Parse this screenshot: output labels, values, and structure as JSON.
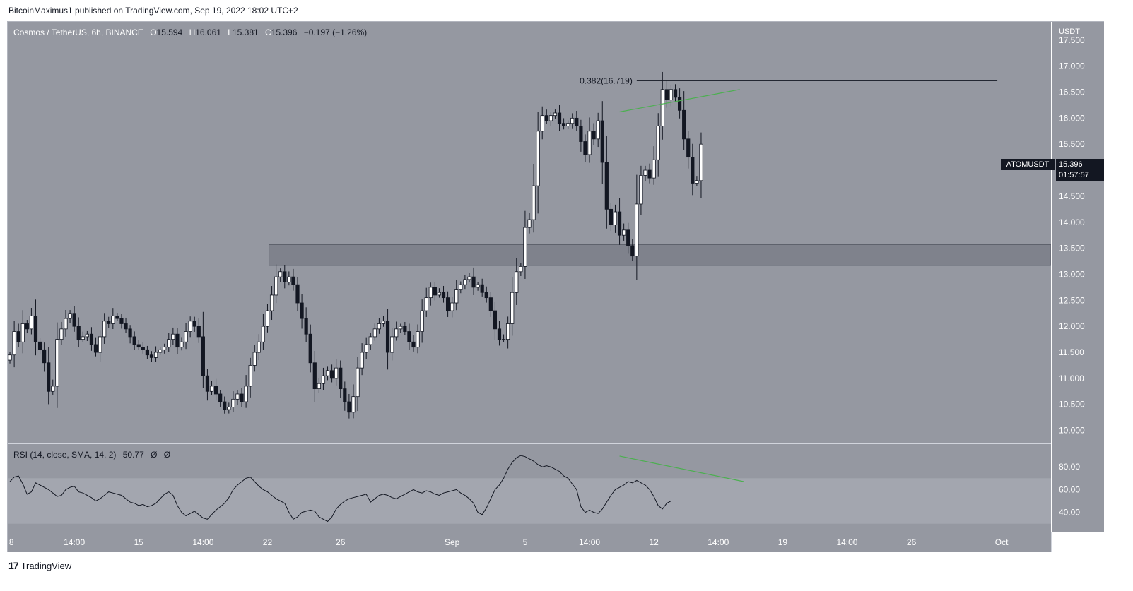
{
  "header": {
    "published": "BitcoinMaximus1 published on TradingView.com, Sep 19, 2022 18:02 UTC+2"
  },
  "legend": {
    "symbol": "Cosmos / TetherUS, 6h, BINANCE",
    "o_label": "O",
    "o": "15.594",
    "h_label": "H",
    "h": "16.061",
    "l_label": "L",
    "l": "15.381",
    "c_label": "C",
    "c": "15.396",
    "change": "−0.197 (−1.26%)"
  },
  "price_axis": {
    "unit": "USDT"
  },
  "badge": {
    "symbol": "ATOMUSDT",
    "price": "15.396",
    "countdown": "01:57:57"
  },
  "fib_label": "0.382(16.719)",
  "rsi": {
    "legend_name": "RSI (14, close, SMA, 14, 2)",
    "value": "50.77",
    "ph1": "Ø",
    "ph2": "Ø"
  },
  "footer": {
    "logo": "17",
    "brand": "TradingView"
  },
  "colors": {
    "background": "#9598a1",
    "candle_up": "#ffffff",
    "candle_down": "#131722",
    "divergence": "#4caf50",
    "zone": "#787b86"
  },
  "chart_data": [
    {
      "type": "candlestick",
      "title": "Cosmos / TetherUS, 6h, BINANCE",
      "ylabel": "USDT",
      "ylim": [
        9.75,
        17.85
      ],
      "yticks": [
        "17.500",
        "17.000",
        "16.500",
        "16.000",
        "15.500",
        "15.000",
        "14.500",
        "14.000",
        "13.500",
        "13.000",
        "12.500",
        "12.000",
        "11.500",
        "11.000",
        "10.500",
        "10.000"
      ],
      "ytick_values": [
        17.5,
        17.0,
        16.5,
        16.0,
        15.5,
        15.0,
        14.5,
        14.0,
        13.5,
        13.0,
        12.5,
        12.0,
        11.5,
        11.0,
        10.5,
        10.0
      ],
      "xticks": [
        {
          "label": "8",
          "index": -0.2
        },
        {
          "label": "14:00",
          "index": 15
        },
        {
          "label": "15",
          "index": 30
        },
        {
          "label": "14:00",
          "index": 45
        },
        {
          "label": "22",
          "index": 60
        },
        {
          "label": "26",
          "index": 77
        },
        {
          "label": "Sep",
          "index": 103
        },
        {
          "label": "5",
          "index": 120
        },
        {
          "label": "14:00",
          "index": 135
        },
        {
          "label": "12",
          "index": 150
        },
        {
          "label": "14:00",
          "index": 165
        },
        {
          "label": "19",
          "index": 180
        },
        {
          "label": "14:00",
          "index": 195
        },
        {
          "label": "26",
          "index": 210
        },
        {
          "label": "Oct",
          "index": 231
        }
      ],
      "visible_slots": 243,
      "support_zone": [
        13.17,
        13.57
      ],
      "fib_level": 16.719,
      "price_divergence": [
        [
          142,
          16.12
        ],
        [
          170,
          16.55
        ]
      ],
      "ohlc_closes": [
        11.45,
        11.9,
        11.7,
        12.05,
        11.95,
        12.2,
        11.7,
        11.55,
        11.3,
        10.75,
        10.85,
        11.75,
        11.95,
        12.15,
        12.25,
        12.0,
        11.75,
        11.8,
        11.85,
        11.65,
        11.5,
        11.8,
        12.1,
        12.05,
        12.2,
        12.15,
        12.05,
        11.95,
        11.8,
        11.65,
        11.6,
        11.55,
        11.45,
        11.4,
        11.5,
        11.55,
        11.6,
        11.75,
        11.85,
        11.6,
        11.7,
        11.9,
        12.1,
        12.0,
        11.8,
        11.05,
        10.75,
        10.85,
        10.7,
        10.55,
        10.4,
        10.45,
        10.6,
        10.7,
        10.55,
        10.85,
        11.25,
        11.5,
        11.7,
        12.0,
        12.3,
        12.6,
        12.95,
        13.05,
        12.85,
        12.95,
        12.8,
        12.45,
        12.15,
        11.85,
        11.3,
        10.8,
        10.9,
        11.05,
        11.15,
        11.0,
        11.2,
        10.8,
        10.55,
        10.35,
        10.65,
        11.2,
        11.5,
        11.65,
        11.8,
        11.95,
        12.05,
        12.1,
        11.5,
        11.8,
        11.95,
        12.0,
        11.9,
        11.7,
        11.6,
        11.9,
        12.3,
        12.55,
        12.75,
        12.6,
        12.65,
        12.55,
        12.3,
        12.45,
        12.7,
        12.8,
        12.9,
        12.95,
        12.75,
        12.8,
        12.65,
        12.55,
        12.3,
        11.95,
        11.75,
        11.75,
        12.05,
        12.65,
        13.05,
        13.15,
        13.9,
        14.05,
        14.7,
        15.75,
        16.05,
        15.95,
        16.05,
        16.1,
        15.9,
        15.85,
        15.9,
        16.0,
        15.85,
        15.55,
        15.3,
        15.75,
        15.6,
        15.95,
        15.15,
        14.25,
        13.95,
        14.2,
        13.75,
        13.85,
        13.55,
        13.35,
        14.35,
        14.9,
        15.0,
        14.85,
        15.2,
        15.85,
        16.55,
        16.35,
        16.55,
        16.4,
        16.15,
        15.6,
        15.25,
        14.75,
        14.8,
        15.5
      ]
    },
    {
      "type": "line",
      "title": "RSI (14, close, SMA, 14, 2)",
      "ylim": [
        23,
        100
      ],
      "yticks": [
        "80.00",
        "60.00",
        "40.00"
      ],
      "ytick_values": [
        80,
        60,
        40
      ],
      "band": [
        30,
        70
      ],
      "midline": 50,
      "rsi_divergence": [
        [
          142,
          89.5
        ],
        [
          171,
          67
        ]
      ],
      "values": [
        67,
        71,
        72,
        65,
        56,
        58,
        66,
        64,
        62,
        60,
        57,
        54,
        55,
        60,
        62,
        63,
        58,
        57,
        55,
        53,
        50,
        52,
        55,
        58,
        57,
        56,
        55,
        52,
        49,
        48,
        46,
        47,
        45,
        46,
        48,
        52,
        56,
        58,
        55,
        46,
        40,
        37,
        39,
        41,
        38,
        35,
        34,
        38,
        42,
        45,
        48,
        53,
        60,
        64,
        67,
        70,
        71,
        67,
        63,
        60,
        58,
        55,
        52,
        50,
        48,
        40,
        34,
        36,
        40,
        41,
        42,
        41,
        36,
        34,
        32,
        36,
        43,
        47,
        50,
        52,
        53,
        54,
        55,
        56,
        49,
        52,
        55,
        56,
        55,
        53,
        52,
        54,
        56,
        58,
        60,
        58,
        57,
        59,
        58,
        56,
        55,
        57,
        58,
        59,
        60,
        57,
        55,
        52,
        48,
        40,
        38,
        44,
        52,
        60,
        64,
        70,
        78,
        84,
        88,
        90,
        89,
        87,
        85,
        82,
        80,
        81,
        80,
        78,
        76,
        72,
        70,
        65,
        60,
        45,
        40,
        42,
        40,
        39,
        43,
        49,
        55,
        60,
        62,
        64,
        67,
        66,
        68,
        66,
        64,
        60,
        54,
        46,
        43,
        48,
        50
      ]
    }
  ]
}
